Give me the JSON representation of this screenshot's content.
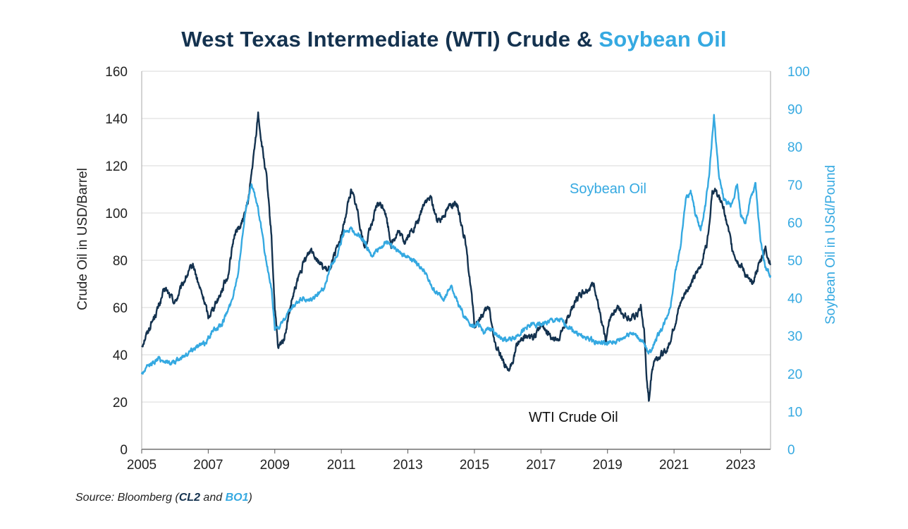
{
  "colors": {
    "wti": "#14324f",
    "soy": "#35a9e1",
    "grid": "#d9d9d9",
    "text": "#222222"
  },
  "chart_data": {
    "type": "line",
    "title": {
      "prefix": "West Texas Intermediate (WTI) Crude &",
      "accent": "Soybean Oil"
    },
    "xlabel": "",
    "ylabel_left": "Crude Oil in USD/Barrel",
    "ylabel_right": "Soybean Oil in USd/Pound",
    "xlim": [
      2005,
      2023.9
    ],
    "ylim_left": [
      0,
      160
    ],
    "ylim_right": [
      0,
      100
    ],
    "x_ticks": [
      "2005",
      "2007",
      "2009",
      "2011",
      "2013",
      "2015",
      "2017",
      "2019",
      "2021",
      "2023"
    ],
    "y_ticks_left": [
      "0",
      "20",
      "40",
      "60",
      "80",
      "100",
      "120",
      "140",
      "160"
    ],
    "y_ticks_right": [
      "0",
      "10",
      "20",
      "30",
      "40",
      "50",
      "60",
      "70",
      "80",
      "90",
      "100"
    ],
    "grid": "horizontal",
    "annotations": {
      "soy": "Soybean Oil",
      "wti": "WTI Crude Oil"
    },
    "series": [
      {
        "name": "WTI Crude Oil",
        "axis": "left",
        "x": [
          2005.0,
          2005.25,
          2005.5,
          2005.7,
          2006.0,
          2006.3,
          2006.55,
          2006.7,
          2006.9,
          2007.0,
          2007.3,
          2007.6,
          2007.8,
          2008.0,
          2008.2,
          2008.4,
          2008.5,
          2008.6,
          2008.75,
          2008.9,
          2009.0,
          2009.1,
          2009.3,
          2009.5,
          2009.7,
          2009.9,
          2010.1,
          2010.4,
          2010.6,
          2010.8,
          2011.0,
          2011.2,
          2011.3,
          2011.5,
          2011.7,
          2011.9,
          2012.1,
          2012.3,
          2012.5,
          2012.7,
          2012.9,
          2013.1,
          2013.3,
          2013.5,
          2013.7,
          2013.9,
          2014.1,
          2014.3,
          2014.5,
          2014.7,
          2014.9,
          2015.0,
          2015.2,
          2015.45,
          2015.6,
          2015.8,
          2016.0,
          2016.1,
          2016.3,
          2016.5,
          2016.8,
          2017.0,
          2017.3,
          2017.5,
          2017.8,
          2018.0,
          2018.2,
          2018.4,
          2018.6,
          2018.8,
          2018.95,
          2019.1,
          2019.3,
          2019.5,
          2019.7,
          2019.9,
          2020.0,
          2020.1,
          2020.2,
          2020.25,
          2020.3,
          2020.4,
          2020.6,
          2020.8,
          2021.0,
          2021.2,
          2021.4,
          2021.6,
          2021.8,
          2022.0,
          2022.15,
          2022.3,
          2022.45,
          2022.6,
          2022.75,
          2022.9,
          2023.0,
          2023.15,
          2023.3,
          2023.45,
          2023.6,
          2023.75,
          2023.9
        ],
        "values": [
          44,
          52,
          60,
          68,
          62,
          72,
          78,
          70,
          62,
          56,
          64,
          74,
          92,
          95,
          105,
          128,
          142,
          130,
          115,
          90,
          60,
          42,
          48,
          62,
          72,
          80,
          85,
          78,
          75,
          82,
          90,
          104,
          110,
          100,
          85,
          95,
          104,
          102,
          87,
          92,
          88,
          92,
          96,
          105,
          106,
          96,
          100,
          104,
          102,
          90,
          68,
          52,
          56,
          60,
          45,
          40,
          32,
          35,
          45,
          48,
          47,
          53,
          48,
          46,
          55,
          62,
          66,
          68,
          70,
          55,
          46,
          57,
          60,
          57,
          55,
          57,
          60,
          50,
          25,
          20,
          30,
          38,
          40,
          42,
          52,
          62,
          68,
          72,
          78,
          88,
          110,
          108,
          104,
          95,
          85,
          80,
          78,
          74,
          70,
          74,
          80,
          85,
          78
        ]
      },
      {
        "name": "Soybean Oil",
        "axis": "right",
        "x": [
          2005.0,
          2005.2,
          2005.5,
          2005.8,
          2006.0,
          2006.3,
          2006.6,
          2006.9,
          2007.1,
          2007.4,
          2007.7,
          2007.9,
          2008.1,
          2008.3,
          2008.5,
          2008.7,
          2008.9,
          2009.0,
          2009.2,
          2009.5,
          2009.8,
          2010.0,
          2010.3,
          2010.5,
          2010.7,
          2010.9,
          2011.1,
          2011.3,
          2011.5,
          2011.7,
          2011.9,
          2012.1,
          2012.4,
          2012.6,
          2012.8,
          2013.0,
          2013.2,
          2013.5,
          2013.7,
          2013.9,
          2014.1,
          2014.3,
          2014.5,
          2014.7,
          2014.9,
          2015.1,
          2015.3,
          2015.5,
          2015.7,
          2015.9,
          2016.1,
          2016.4,
          2016.7,
          2017.0,
          2017.3,
          2017.6,
          2017.9,
          2018.2,
          2018.5,
          2018.8,
          2019.1,
          2019.4,
          2019.7,
          2020.0,
          2020.2,
          2020.3,
          2020.5,
          2020.7,
          2020.9,
          2021.0,
          2021.2,
          2021.35,
          2021.5,
          2021.65,
          2021.8,
          2021.95,
          2022.05,
          2022.2,
          2022.35,
          2022.5,
          2022.7,
          2022.9,
          2023.0,
          2023.15,
          2023.3,
          2023.45,
          2023.6,
          2023.75,
          2023.9
        ],
        "values": [
          20,
          22,
          24,
          23,
          23,
          25,
          27,
          28,
          31,
          33,
          39,
          47,
          62,
          70,
          64,
          52,
          42,
          32,
          33,
          37,
          40,
          39,
          41,
          43,
          49,
          52,
          58,
          58,
          57,
          55,
          51,
          53,
          55,
          53,
          52,
          51,
          50,
          47,
          43,
          41,
          40,
          43,
          39,
          35,
          33,
          33,
          31,
          32,
          30,
          29,
          29,
          31,
          33,
          33,
          34,
          34,
          32,
          30,
          29,
          28,
          28,
          29,
          31,
          29,
          26,
          26,
          30,
          33,
          38,
          45,
          54,
          66,
          68,
          62,
          58,
          65,
          72,
          88,
          72,
          66,
          64,
          70,
          62,
          60,
          66,
          70,
          55,
          48,
          46
        ]
      }
    ]
  },
  "source": {
    "prefix": "Source: Bloomberg (",
    "ticker1": "CL2",
    "mid": " and ",
    "ticker2": "BO1",
    "suffix": ")"
  }
}
